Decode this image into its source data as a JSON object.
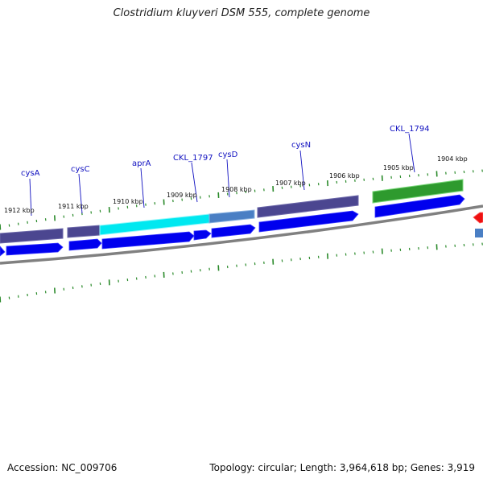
{
  "title": "Clostridium kluyveri DSM 555, complete genome",
  "accession": "Accession: NC_009706",
  "summary": "Topology: circular; Length: 3,964,618 bp; Genes: 3,919",
  "colors": {
    "background": "#ffffff",
    "backbone": "#808080",
    "tick": "#2a8a2a",
    "cds_arrow": "#0000ee",
    "gene_default": "#4b4690",
    "gene_apra": "#00e8f0",
    "gene_ckl1797": "#4a7fc4",
    "gene_ckl1794": "#2e9a2e",
    "label_text": "#1010c0",
    "marker_red": "#ee1111"
  },
  "kbp_labels": [
    "1912 kbp",
    "1911 kbp",
    "1910 kbp",
    "1909 kbp",
    "1908 kbp",
    "1907 kbp",
    "1906 kbp",
    "1905 kbp",
    "1904 kbp"
  ],
  "genes": [
    "cysA",
    "cysC",
    "aprA",
    "CKL_1797",
    "cysD",
    "cysN",
    "CKL_1794"
  ]
}
